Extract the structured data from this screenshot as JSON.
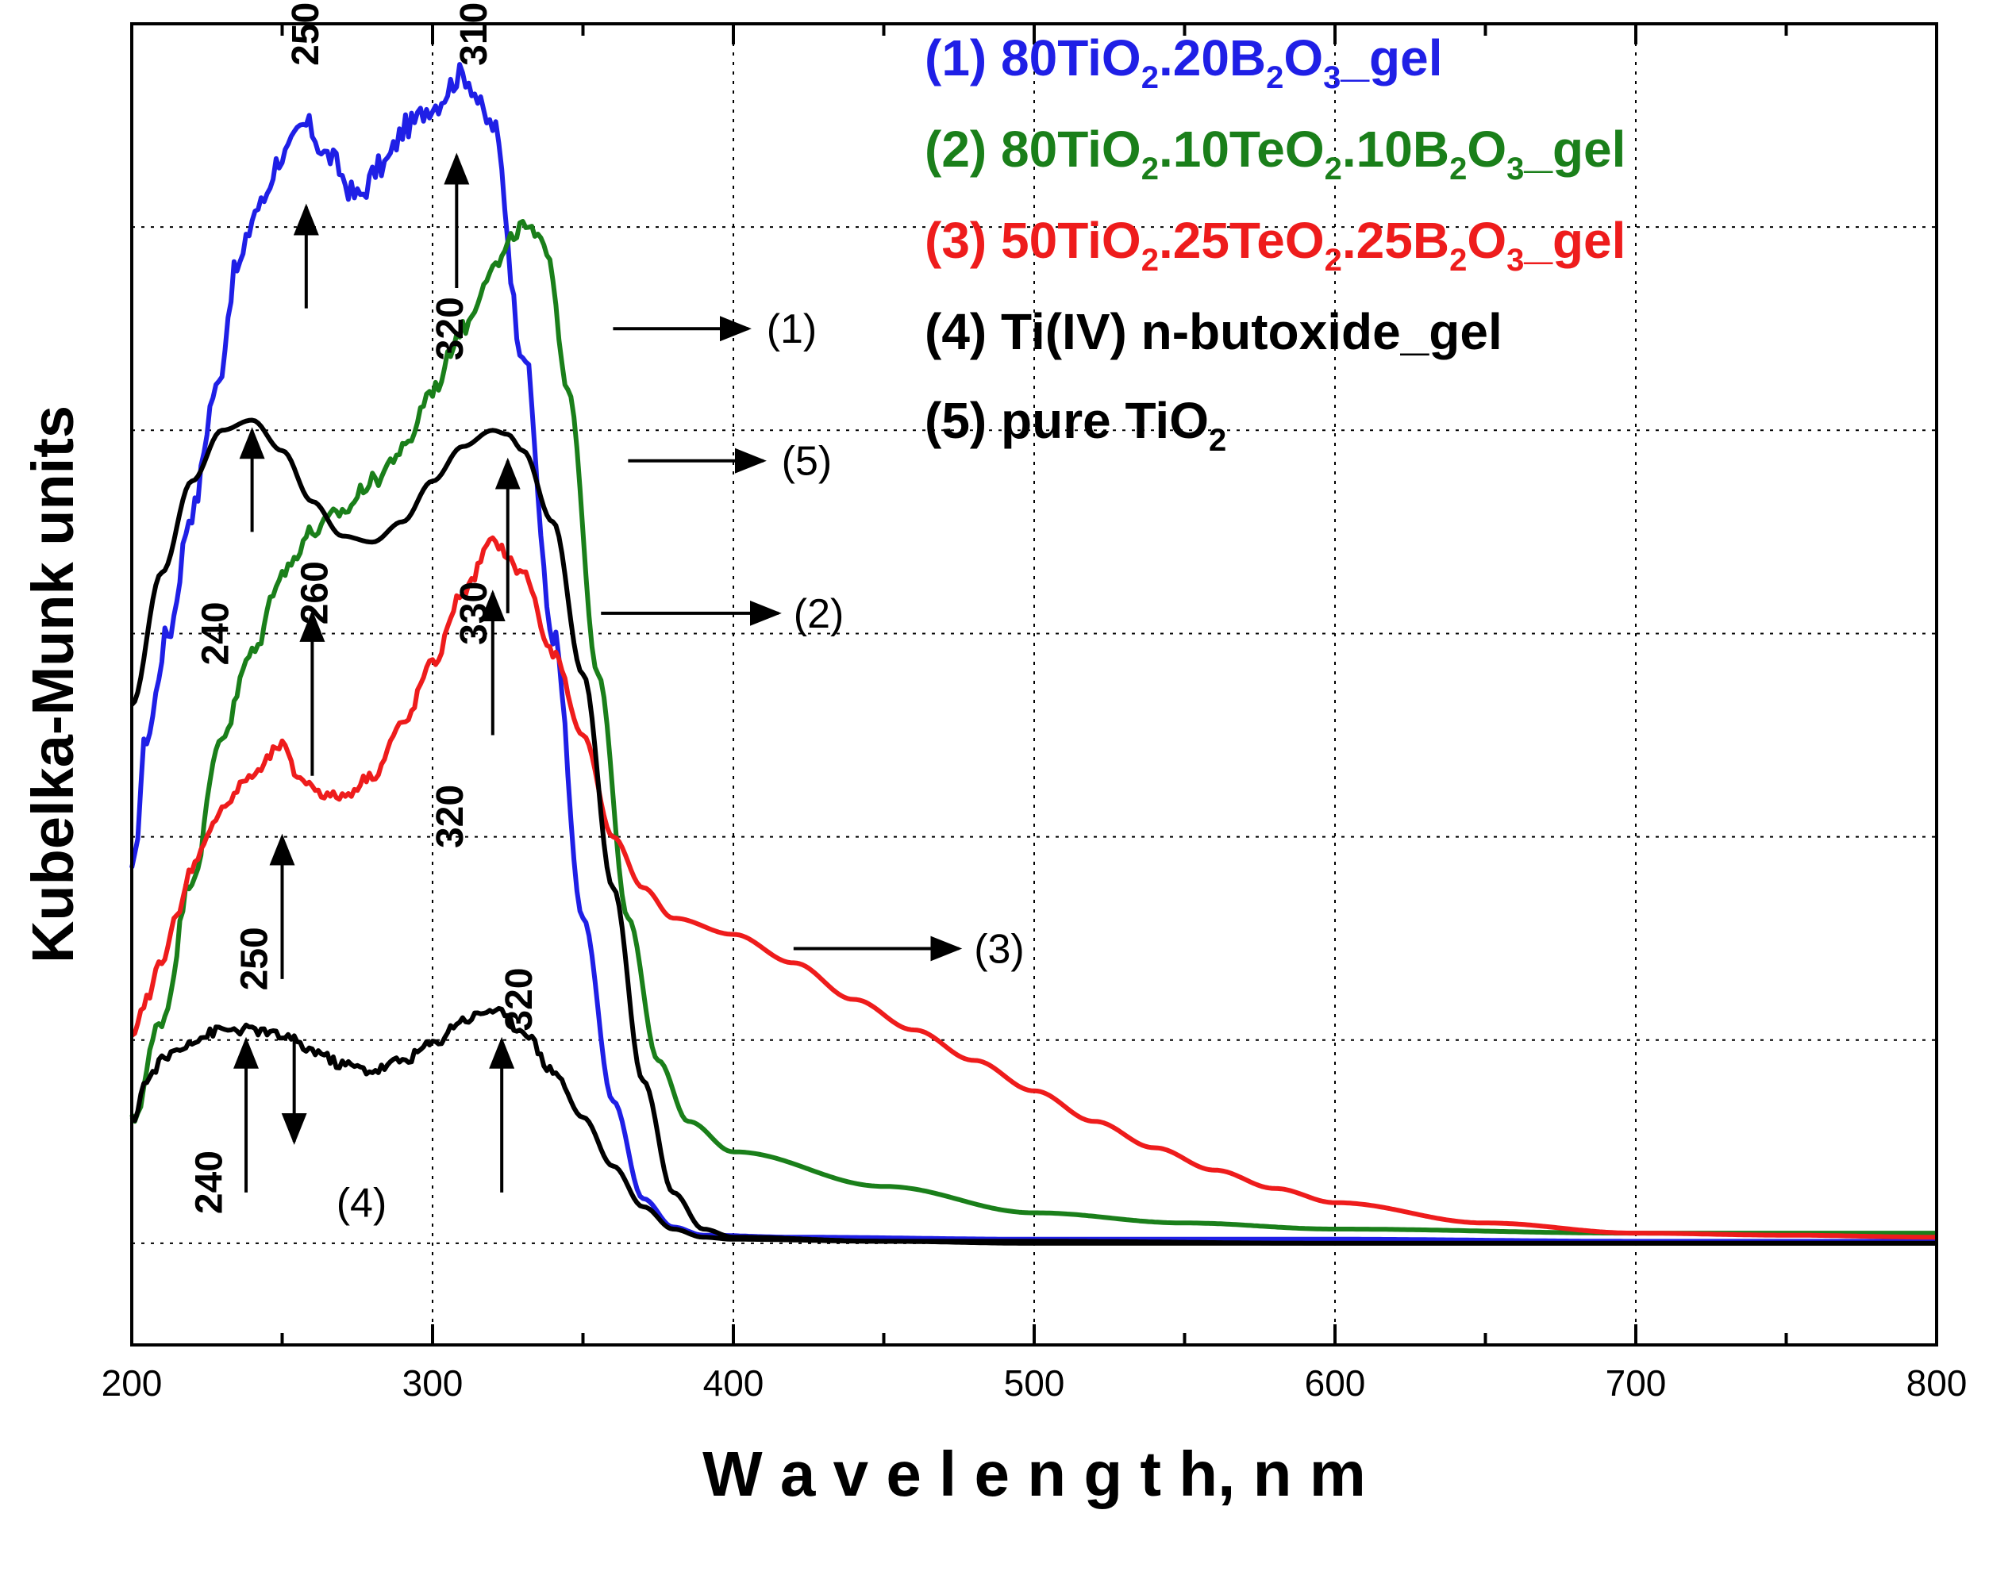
{
  "chart_data": {
    "type": "line",
    "xlabel": "W a v e l e n g t h, n m",
    "ylabel": "Kubelka-Munk units",
    "xlim": [
      200,
      800
    ],
    "ylim": [
      -0.5,
      6
    ],
    "x_ticks": [
      "200",
      "300",
      "400",
      "500",
      "600",
      "700",
      "800"
    ],
    "grid": "dotted, vertical at 300–700 nm, horizontal every 1 unit",
    "legend_position": "top-right",
    "legend": [
      {
        "num": "(1)",
        "parts": [
          "80TiO",
          "2",
          ".20B",
          "2",
          "O",
          "3",
          "_gel"
        ],
        "color": "#1f1fe6"
      },
      {
        "num": "(2)",
        "parts": [
          "80TiO",
          "2",
          ".10TeO",
          "2",
          ".10B",
          "2",
          "O",
          "3",
          "_gel"
        ],
        "color": "#1a7f1a"
      },
      {
        "num": "(3)",
        "parts": [
          "50TiO",
          "2",
          ".25TeO",
          "2",
          ".25B",
          "2",
          "O",
          "3",
          "_gel"
        ],
        "color": "#ee1c1c"
      },
      {
        "num": "(4)",
        "parts": [
          "Ti(IV) n-butoxide_gel"
        ],
        "color": "#000000"
      },
      {
        "num": "(5)",
        "parts": [
          "pure TiO",
          "2"
        ],
        "color": "#000000"
      }
    ],
    "series": [
      {
        "name": "(1) 80TiO2.20B2O3_gel",
        "color": "#1f1fe6",
        "noise": 0.06,
        "x": [
          200,
          205,
          212,
          220,
          228,
          235,
          242,
          250,
          258,
          265,
          275,
          283,
          292,
          300,
          310,
          320,
          330,
          340,
          350,
          360,
          370,
          380,
          390,
          420,
          500,
          600,
          700,
          800
        ],
        "y": [
          1.8,
          2.5,
          3.0,
          3.6,
          4.2,
          4.8,
          5.1,
          5.35,
          5.5,
          5.35,
          5.15,
          5.3,
          5.5,
          5.6,
          5.75,
          5.5,
          4.4,
          3.0,
          1.6,
          0.7,
          0.22,
          0.08,
          0.04,
          0.03,
          0.02,
          0.02,
          0.01,
          0.01
        ]
      },
      {
        "name": "(2) 80TiO2.10TeO2.10B2O3_gel",
        "color": "#1a7f1a",
        "noise": 0.04,
        "x": [
          200,
          210,
          220,
          230,
          240,
          250,
          260,
          270,
          280,
          290,
          300,
          310,
          320,
          330,
          338,
          345,
          355,
          365,
          375,
          385,
          400,
          450,
          500,
          550,
          600,
          700,
          800
        ],
        "y": [
          0.6,
          1.1,
          1.8,
          2.5,
          2.9,
          3.3,
          3.5,
          3.6,
          3.75,
          3.9,
          4.2,
          4.5,
          4.8,
          5.0,
          4.9,
          4.2,
          2.8,
          1.6,
          0.9,
          0.6,
          0.45,
          0.28,
          0.15,
          0.1,
          0.07,
          0.05,
          0.05
        ]
      },
      {
        "name": "(3) 50TiO2.25TeO2.25B2O3_gel",
        "color": "#ee1c1c",
        "noise": 0.025,
        "x": [
          200,
          205,
          210,
          215,
          220,
          225,
          230,
          240,
          250,
          255,
          260,
          265,
          270,
          280,
          290,
          300,
          310,
          320,
          330,
          340,
          350,
          360,
          370,
          380,
          400,
          420,
          440,
          460,
          480,
          500,
          520,
          540,
          560,
          580,
          600,
          650,
          700,
          750,
          800
        ],
        "y": [
          1.0,
          1.2,
          1.4,
          1.6,
          1.85,
          2.0,
          2.15,
          2.3,
          2.45,
          2.3,
          2.25,
          2.2,
          2.2,
          2.3,
          2.55,
          2.85,
          3.2,
          3.45,
          3.3,
          2.9,
          2.5,
          2.0,
          1.75,
          1.6,
          1.52,
          1.38,
          1.2,
          1.05,
          0.9,
          0.75,
          0.6,
          0.47,
          0.36,
          0.27,
          0.2,
          0.1,
          0.05,
          0.04,
          0.03
        ]
      },
      {
        "name": "(4) Ti(IV) n-butoxide_gel",
        "color": "#000000",
        "noise": 0.025,
        "x": [
          200,
          205,
          210,
          215,
          220,
          230,
          240,
          250,
          260,
          270,
          280,
          290,
          300,
          310,
          320,
          330,
          340,
          350,
          360,
          370,
          380,
          390,
          400,
          450,
          500,
          600,
          700,
          800
        ],
        "y": [
          0.6,
          0.8,
          0.9,
          0.95,
          1.0,
          1.05,
          1.05,
          1.02,
          0.95,
          0.88,
          0.85,
          0.9,
          0.98,
          1.1,
          1.15,
          1.05,
          0.85,
          0.62,
          0.38,
          0.18,
          0.07,
          0.03,
          0.02,
          0.01,
          0.01,
          0.0,
          0.0,
          0.0
        ]
      },
      {
        "name": "(5) pure TiO2",
        "color": "#000000",
        "noise": 0.0,
        "x": [
          200,
          210,
          220,
          230,
          240,
          250,
          260,
          270,
          280,
          290,
          300,
          310,
          320,
          325,
          330,
          340,
          350,
          360,
          370,
          380,
          390,
          400,
          450,
          500,
          600,
          700,
          800
        ],
        "y": [
          2.65,
          3.3,
          3.75,
          4.0,
          4.05,
          3.9,
          3.65,
          3.48,
          3.45,
          3.55,
          3.75,
          3.92,
          4.0,
          3.98,
          3.9,
          3.55,
          2.8,
          1.75,
          0.8,
          0.25,
          0.07,
          0.03,
          0.01,
          0.0,
          0.0,
          0.0,
          0.0
        ]
      }
    ],
    "peak_labels": [
      {
        "text": "250",
        "x": 262,
        "y": 5.95,
        "rot": -90
      },
      {
        "text": "310",
        "x": 318,
        "y": 5.95,
        "rot": -90
      },
      {
        "text": "320",
        "x": 310,
        "y": 4.5,
        "rot": -90
      },
      {
        "text": "240",
        "x": 232,
        "y": 3.0,
        "rot": -90
      },
      {
        "text": "260",
        "x": 265,
        "y": 3.2,
        "rot": -90
      },
      {
        "text": "330",
        "x": 318,
        "y": 3.1,
        "rot": -90
      },
      {
        "text": "320",
        "x": 310,
        "y": 2.1,
        "rot": -90
      },
      {
        "text": "250",
        "x": 245,
        "y": 1.4,
        "rot": -90
      },
      {
        "text": "320",
        "x": 333,
        "y": 1.2,
        "rot": -90
      },
      {
        "text": "240",
        "x": 230,
        "y": 0.3,
        "rot": -90
      }
    ],
    "peak_arrows": [
      {
        "x": 258,
        "y_from": 4.6,
        "y_to": 5.1
      },
      {
        "x": 308,
        "y_from": 4.7,
        "y_to": 5.35
      },
      {
        "x": 240,
        "y_from": 3.5,
        "y_to": 4.0
      },
      {
        "x": 325,
        "y_from": 3.1,
        "y_to": 3.85
      },
      {
        "x": 260,
        "y_from": 2.3,
        "y_to": 3.1
      },
      {
        "x": 320,
        "y_from": 2.5,
        "y_to": 3.2
      },
      {
        "x": 250,
        "y_from": 1.3,
        "y_to": 2.0
      },
      {
        "x": 238,
        "y_from": 0.25,
        "y_to": 1.0
      },
      {
        "x": 323,
        "y_from": 0.25,
        "y_to": 1.0
      },
      {
        "x": 254,
        "y_from": 1.0,
        "y_to": 0.5
      }
    ],
    "series_labels": [
      {
        "text": "(1)",
        "x": 411,
        "y": 4.5,
        "arrow_from": [
          360,
          4.5
        ],
        "arrow_to": [
          405,
          4.5
        ]
      },
      {
        "text": "(5)",
        "x": 416,
        "y": 3.85,
        "arrow_from": [
          365,
          3.85
        ],
        "arrow_to": [
          410,
          3.85
        ]
      },
      {
        "text": "(2)",
        "x": 420,
        "y": 3.1,
        "arrow_from": [
          356,
          3.1
        ],
        "arrow_to": [
          415,
          3.1
        ]
      },
      {
        "text": "(3)",
        "x": 480,
        "y": 1.45,
        "arrow_from": [
          420,
          1.45
        ],
        "arrow_to": [
          475,
          1.45
        ]
      },
      {
        "text": "(4)",
        "x": 268,
        "y": 0.2
      }
    ]
  }
}
